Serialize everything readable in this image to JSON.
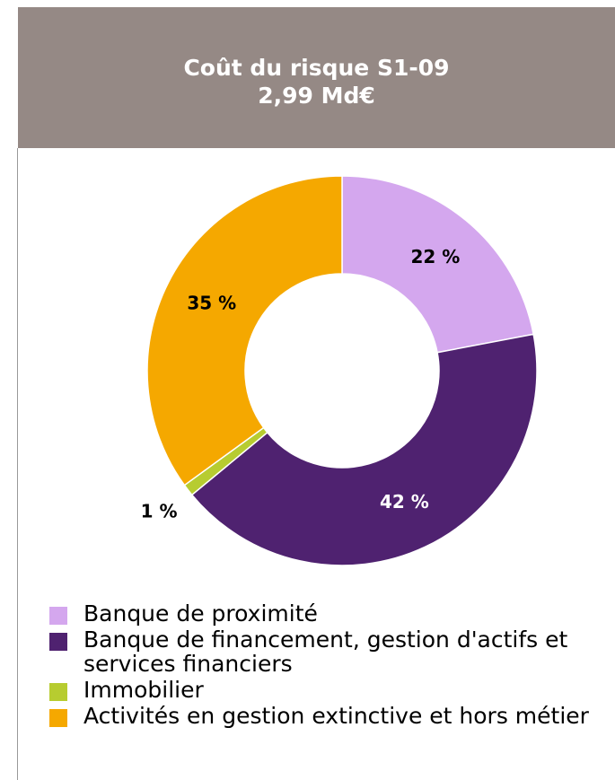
{
  "chart_data": {
    "type": "donut",
    "title": "Coût du risque S1-09",
    "subtitle": "2,99 Md€",
    "categories": [
      "Banque de proximité",
      "Banque de financement, gestion d'actifs et services financiers",
      "Immobilier",
      "Activités en gestion extinctive et hors métier"
    ],
    "values": [
      22,
      42,
      1,
      35
    ],
    "value_labels": [
      "22 %",
      "42 %",
      "1 %",
      "35 %"
    ],
    "colors": [
      "#d4a7ee",
      "#4f2270",
      "#b7cc30",
      "#f5a800"
    ]
  }
}
